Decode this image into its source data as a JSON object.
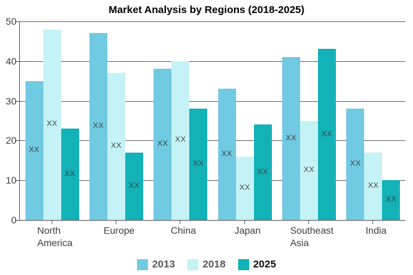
{
  "title": "Market Analysis by Regions (2018-2025)",
  "chart_data": {
    "type": "bar",
    "title": "Market Analysis by Regions (2018-2025)",
    "categories": [
      "North\nAmerica",
      "Europe",
      "China",
      "Japan",
      "Southeast\nAsia",
      "India"
    ],
    "series": [
      {
        "name": "2013",
        "color": "#70CAE1",
        "values": [
          35,
          47,
          38,
          33,
          41,
          28
        ]
      },
      {
        "name": "2018",
        "color": "#C5F2F6",
        "values": [
          48,
          37,
          40,
          16,
          25,
          17
        ]
      },
      {
        "name": "2025",
        "color": "#12B2B8",
        "values": [
          23,
          17,
          28,
          24,
          43,
          10
        ]
      }
    ],
    "bar_value_label": "XX",
    "ylabel": "",
    "xlabel": "",
    "ylim": [
      0,
      50
    ],
    "ytick_step": 10,
    "grid": true,
    "legend_position": "bottom",
    "colors": {
      "grid": "#6b6b6b",
      "axis": "#595959",
      "tick_text": "#3d3d3d",
      "bar_label_text": "#3f3f3f"
    }
  }
}
